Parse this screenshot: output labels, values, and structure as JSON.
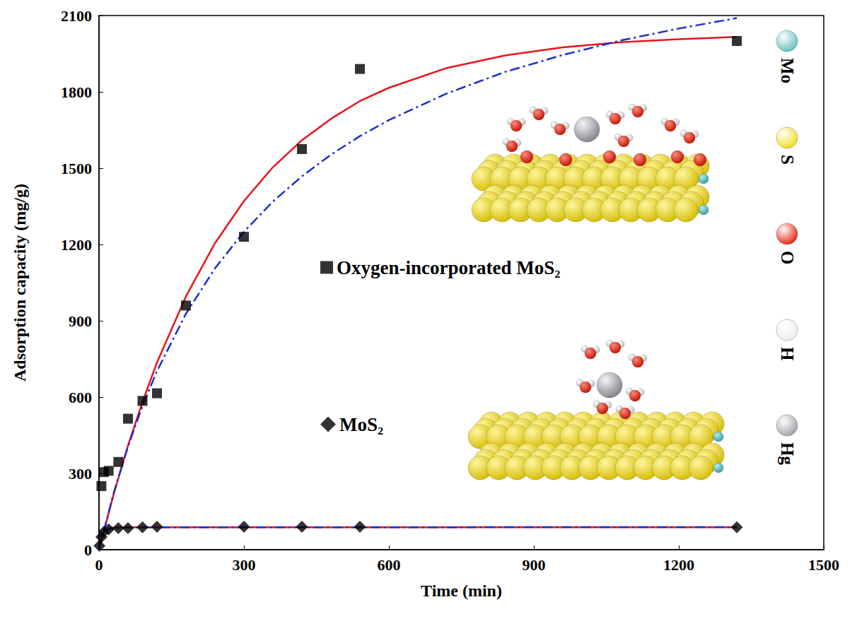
{
  "chart_data": {
    "type": "scatter",
    "xlabel": "Time (min)",
    "ylabel": "Adsorption capacity (mg/g)",
    "xlim": [
      0,
      1500
    ],
    "xticks": [
      0,
      300,
      600,
      900,
      1200,
      1500
    ],
    "ylim": [
      0,
      2100
    ],
    "yticks": [
      0,
      300,
      600,
      900,
      1200,
      1500,
      1800,
      2100
    ],
    "grid": false,
    "legend": "center",
    "series": [
      {
        "name": "Oxygen-incorporated MoS₂",
        "type": "scatter",
        "marker": "square",
        "color": "#000000",
        "x": [
          5,
          10,
          20,
          40,
          60,
          90,
          120,
          180,
          300,
          420,
          540,
          1320
        ],
        "values": [
          250,
          305,
          310,
          345,
          515,
          585,
          615,
          960,
          1230,
          1575,
          1890,
          2000
        ]
      },
      {
        "name": "MoS₂",
        "type": "scatter",
        "marker": "diamond",
        "color": "#000000",
        "x": [
          1,
          5,
          10,
          20,
          40,
          60,
          90,
          120,
          300,
          420,
          540,
          1320
        ],
        "values": [
          15,
          50,
          70,
          80,
          85,
          85,
          88,
          90,
          90,
          90,
          90,
          88
        ]
      },
      {
        "type": "line",
        "line_style": "solid",
        "color": "#e8141b",
        "x": [
          0,
          30,
          60,
          90,
          120,
          180,
          240,
          300,
          360,
          420,
          480,
          540,
          600,
          720,
          840,
          960,
          1080,
          1200,
          1320
        ],
        "values": [
          0,
          216,
          409,
          581,
          736,
          996,
          1205,
          1371,
          1504,
          1610,
          1694,
          1764,
          1816,
          1894,
          1943,
          1975,
          1995,
          2007,
          2016
        ]
      },
      {
        "type": "line",
        "line_style": "dashdot",
        "color": "#1a2ecc",
        "x": [
          0,
          30,
          60,
          90,
          120,
          180,
          240,
          300,
          360,
          420,
          480,
          540,
          600,
          720,
          840,
          960,
          1080,
          1200,
          1320
        ],
        "values": [
          0,
          220,
          406,
          565,
          702,
          928,
          1106,
          1250,
          1369,
          1468,
          1553,
          1626,
          1689,
          1794,
          1878,
          1945,
          2002,
          2049,
          2090
        ]
      },
      {
        "type": "line",
        "line_style": "solid",
        "color": "#e8141b",
        "x": [
          0,
          5,
          10,
          20,
          30,
          60,
          120,
          1320
        ],
        "values": [
          0,
          50,
          72,
          84,
          87,
          88,
          88,
          88
        ]
      },
      {
        "type": "line",
        "line_style": "dashdot",
        "color": "#1a2ecc",
        "x": [
          0,
          5,
          10,
          20,
          30,
          60,
          120,
          1320
        ],
        "values": [
          0,
          55,
          70,
          80,
          84,
          87,
          88,
          89
        ]
      }
    ],
    "annotations": [
      {
        "text": "Mo",
        "color": "#5fbfc0"
      },
      {
        "text": "S",
        "color": "#f2dc1a"
      },
      {
        "text": "O",
        "color": "#e8200e"
      },
      {
        "text": "H",
        "color": "#eeeeee"
      },
      {
        "text": "Hg",
        "color": "#a0a0a8"
      }
    ]
  }
}
